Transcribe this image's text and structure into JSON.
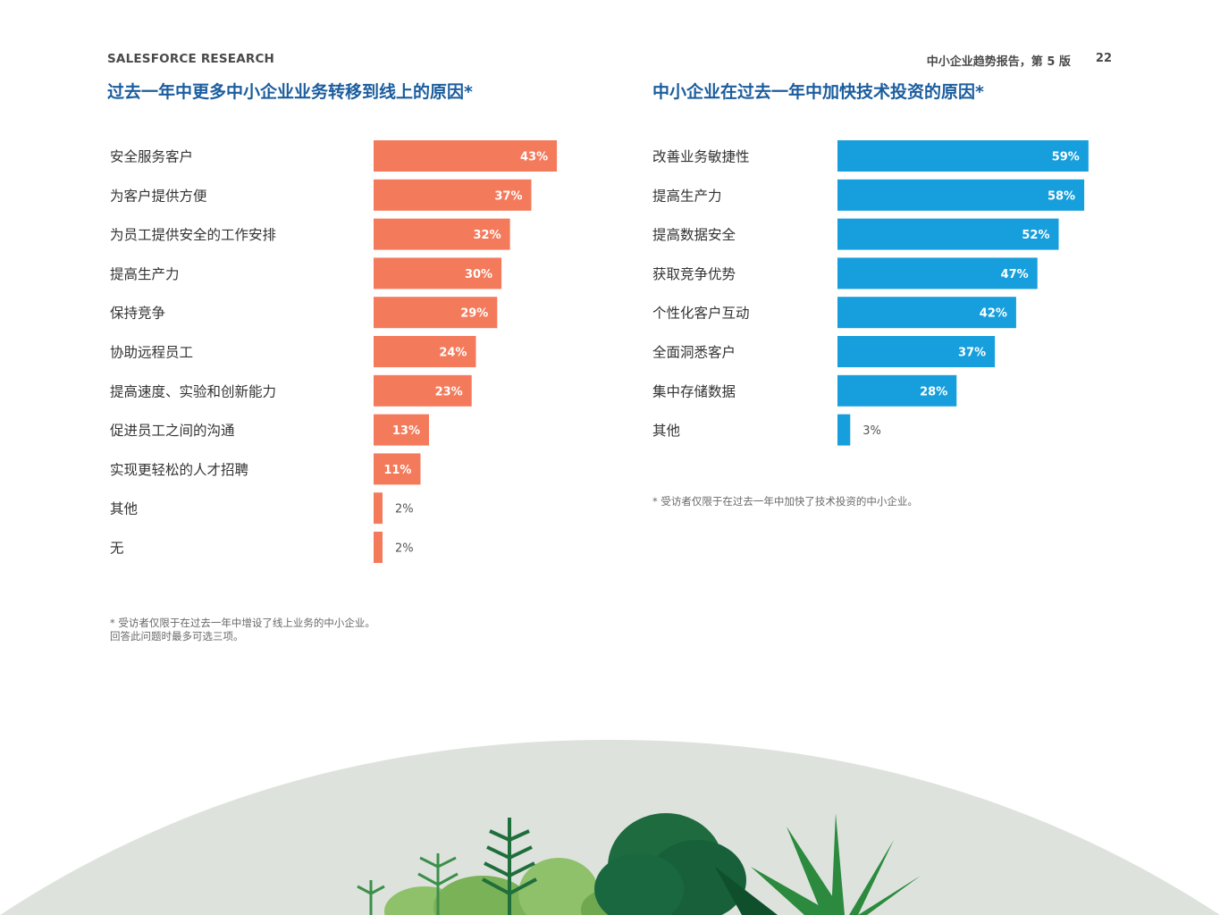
{
  "header": {
    "brand": "SALESFORCE RESEARCH",
    "report": "中小企业趋势报告，第 5 版",
    "page": "22"
  },
  "left_panel": {
    "title": "过去一年中更多中小企业业务转移到线上的原因*",
    "footnote_line1": "* 受访者仅限于在过去一年中增设了线上业务的中小企业。",
    "footnote_line2": "回答此问题时最多可选三项。"
  },
  "right_panel": {
    "title": "中小企业在过去一年中加快技术投资的原因*",
    "footnote_line1": "* 受访者仅限于在过去一年中加快了技术投资的中小企业。"
  },
  "chart_data": [
    {
      "type": "bar",
      "orientation": "horizontal",
      "title": "过去一年中更多中小企业业务转移到线上的原因*",
      "color": "#f47a5c",
      "unit": "%",
      "categories": [
        "安全服务客户",
        "为客户提供方便",
        "为员工提供安全的工作安排",
        "提高生产力",
        "保持竞争",
        "协助远程员工",
        "提高速度、实验和创新能力",
        "促进员工之间的沟通",
        "实现更轻松的人才招聘",
        "其他",
        "无"
      ],
      "values": [
        43,
        37,
        32,
        30,
        29,
        24,
        23,
        13,
        11,
        2,
        2
      ],
      "labels": [
        "43%",
        "37%",
        "32%",
        "30%",
        "29%",
        "24%",
        "23%",
        "13%",
        "11%",
        "2%",
        "2%"
      ]
    },
    {
      "type": "bar",
      "orientation": "horizontal",
      "title": "中小企业在过去一年中加快技术投资的原因*",
      "color": "#169fdc",
      "unit": "%",
      "categories": [
        "改善业务敏捷性",
        "提高生产力",
        "提高数据安全",
        "获取竞争优势",
        "个性化客户互动",
        "全面洞悉客户",
        "集中存储数据",
        "其他"
      ],
      "values": [
        59,
        58,
        52,
        47,
        42,
        37,
        28,
        3
      ],
      "labels": [
        "59%",
        "58%",
        "52%",
        "47%",
        "42%",
        "37%",
        "28%",
        "3%"
      ]
    }
  ]
}
